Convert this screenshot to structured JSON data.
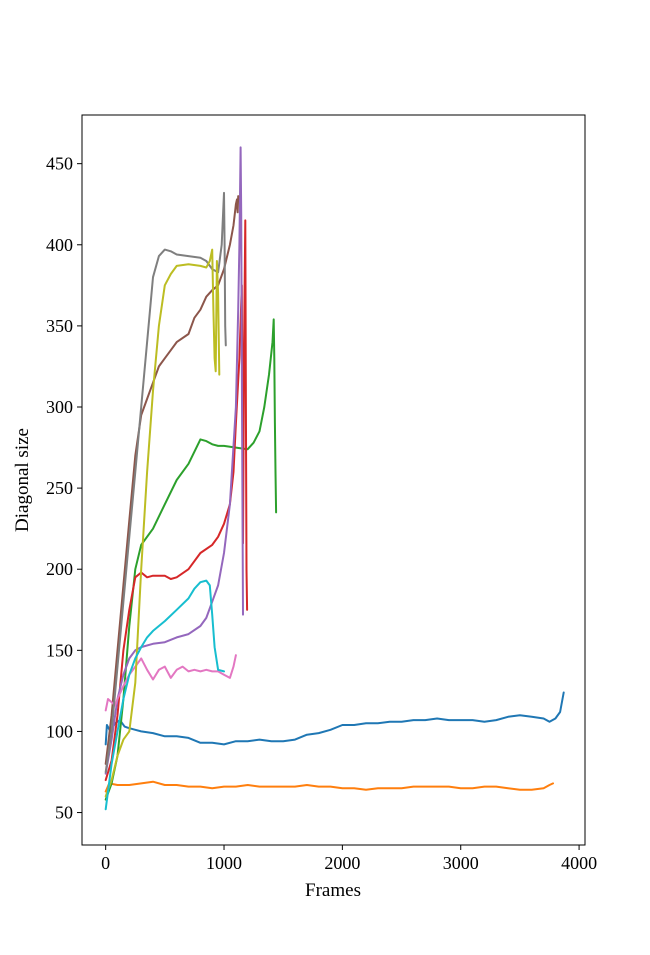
{
  "chart_data": {
    "type": "line",
    "title": "",
    "xlabel": "Frames",
    "ylabel": "Diagonal size",
    "xlim": [
      -200,
      4050
    ],
    "ylim": [
      30,
      480
    ],
    "xticks": [
      0,
      1000,
      2000,
      3000,
      4000
    ],
    "yticks": [
      50,
      100,
      150,
      200,
      250,
      300,
      350,
      400,
      450
    ],
    "grid": false,
    "legend": "none",
    "series": [
      {
        "color": "#1f77b4",
        "points": [
          [
            0,
            92
          ],
          [
            10,
            104
          ],
          [
            40,
            100
          ],
          [
            80,
            105
          ],
          [
            120,
            107
          ],
          [
            160,
            103
          ],
          [
            200,
            102
          ],
          [
            250,
            101
          ],
          [
            300,
            100
          ],
          [
            400,
            99
          ],
          [
            500,
            97
          ],
          [
            600,
            97
          ],
          [
            700,
            96
          ],
          [
            800,
            93
          ],
          [
            900,
            93
          ],
          [
            1000,
            92
          ],
          [
            1100,
            94
          ],
          [
            1200,
            94
          ],
          [
            1300,
            95
          ],
          [
            1400,
            94
          ],
          [
            1500,
            94
          ],
          [
            1600,
            95
          ],
          [
            1700,
            98
          ],
          [
            1800,
            99
          ],
          [
            1900,
            101
          ],
          [
            2000,
            104
          ],
          [
            2100,
            104
          ],
          [
            2200,
            105
          ],
          [
            2300,
            105
          ],
          [
            2400,
            106
          ],
          [
            2500,
            106
          ],
          [
            2600,
            107
          ],
          [
            2700,
            107
          ],
          [
            2800,
            108
          ],
          [
            2900,
            107
          ],
          [
            3000,
            107
          ],
          [
            3100,
            107
          ],
          [
            3200,
            106
          ],
          [
            3300,
            107
          ],
          [
            3400,
            109
          ],
          [
            3500,
            110
          ],
          [
            3600,
            109
          ],
          [
            3700,
            108
          ],
          [
            3750,
            106
          ],
          [
            3800,
            108
          ],
          [
            3840,
            112
          ],
          [
            3870,
            124
          ]
        ]
      },
      {
        "color": "#ff7f0e",
        "points": [
          [
            0,
            63
          ],
          [
            30,
            68
          ],
          [
            100,
            67
          ],
          [
            200,
            67
          ],
          [
            300,
            68
          ],
          [
            400,
            69
          ],
          [
            500,
            67
          ],
          [
            600,
            67
          ],
          [
            700,
            66
          ],
          [
            800,
            66
          ],
          [
            900,
            65
          ],
          [
            1000,
            66
          ],
          [
            1100,
            66
          ],
          [
            1200,
            67
          ],
          [
            1300,
            66
          ],
          [
            1400,
            66
          ],
          [
            1500,
            66
          ],
          [
            1600,
            66
          ],
          [
            1700,
            67
          ],
          [
            1800,
            66
          ],
          [
            1900,
            66
          ],
          [
            2000,
            65
          ],
          [
            2100,
            65
          ],
          [
            2200,
            64
          ],
          [
            2300,
            65
          ],
          [
            2400,
            65
          ],
          [
            2500,
            65
          ],
          [
            2600,
            66
          ],
          [
            2700,
            66
          ],
          [
            2800,
            66
          ],
          [
            2900,
            66
          ],
          [
            3000,
            65
          ],
          [
            3100,
            65
          ],
          [
            3200,
            66
          ],
          [
            3300,
            66
          ],
          [
            3400,
            65
          ],
          [
            3500,
            64
          ],
          [
            3600,
            64
          ],
          [
            3700,
            65
          ],
          [
            3750,
            67
          ],
          [
            3780,
            68
          ]
        ]
      },
      {
        "color": "#2ca02c",
        "points": [
          [
            0,
            58
          ],
          [
            50,
            68
          ],
          [
            100,
            85
          ],
          [
            150,
            120
          ],
          [
            200,
            165
          ],
          [
            250,
            200
          ],
          [
            300,
            215
          ],
          [
            400,
            225
          ],
          [
            500,
            240
          ],
          [
            600,
            255
          ],
          [
            700,
            265
          ],
          [
            800,
            280
          ],
          [
            850,
            279
          ],
          [
            900,
            277
          ],
          [
            950,
            276
          ],
          [
            1000,
            276
          ],
          [
            1100,
            275
          ],
          [
            1200,
            274
          ],
          [
            1250,
            278
          ],
          [
            1300,
            285
          ],
          [
            1340,
            300
          ],
          [
            1380,
            320
          ],
          [
            1410,
            340
          ],
          [
            1420,
            354
          ],
          [
            1425,
            330
          ],
          [
            1430,
            290
          ],
          [
            1435,
            260
          ],
          [
            1440,
            235
          ]
        ]
      },
      {
        "color": "#d62728",
        "points": [
          [
            0,
            70
          ],
          [
            50,
            82
          ],
          [
            100,
            110
          ],
          [
            150,
            150
          ],
          [
            200,
            175
          ],
          [
            250,
            195
          ],
          [
            300,
            198
          ],
          [
            350,
            195
          ],
          [
            400,
            196
          ],
          [
            500,
            196
          ],
          [
            550,
            194
          ],
          [
            600,
            195
          ],
          [
            700,
            200
          ],
          [
            800,
            210
          ],
          [
            900,
            215
          ],
          [
            950,
            220
          ],
          [
            1000,
            228
          ],
          [
            1050,
            240
          ],
          [
            1080,
            260
          ],
          [
            1100,
            290
          ],
          [
            1130,
            330
          ],
          [
            1150,
            375
          ],
          [
            1155,
            300
          ],
          [
            1160,
            216
          ],
          [
            1170,
            340
          ],
          [
            1180,
            415
          ],
          [
            1185,
            300
          ],
          [
            1190,
            200
          ],
          [
            1195,
            175
          ]
        ]
      },
      {
        "color": "#9467bd",
        "points": [
          [
            0,
            74
          ],
          [
            50,
            95
          ],
          [
            100,
            120
          ],
          [
            150,
            135
          ],
          [
            200,
            145
          ],
          [
            250,
            150
          ],
          [
            300,
            152
          ],
          [
            400,
            154
          ],
          [
            500,
            155
          ],
          [
            600,
            158
          ],
          [
            700,
            160
          ],
          [
            800,
            165
          ],
          [
            850,
            170
          ],
          [
            900,
            180
          ],
          [
            950,
            190
          ],
          [
            1000,
            210
          ],
          [
            1050,
            240
          ],
          [
            1100,
            300
          ],
          [
            1120,
            360
          ],
          [
            1130,
            400
          ],
          [
            1140,
            460
          ],
          [
            1145,
            420
          ],
          [
            1150,
            330
          ],
          [
            1155,
            250
          ],
          [
            1160,
            172
          ]
        ]
      },
      {
        "color": "#8c564b",
        "points": [
          [
            0,
            80
          ],
          [
            50,
            110
          ],
          [
            100,
            150
          ],
          [
            150,
            190
          ],
          [
            200,
            230
          ],
          [
            250,
            270
          ],
          [
            300,
            295
          ],
          [
            350,
            305
          ],
          [
            400,
            315
          ],
          [
            450,
            325
          ],
          [
            500,
            330
          ],
          [
            550,
            335
          ],
          [
            600,
            340
          ],
          [
            700,
            345
          ],
          [
            750,
            355
          ],
          [
            800,
            360
          ],
          [
            850,
            368
          ],
          [
            900,
            372
          ],
          [
            950,
            375
          ],
          [
            1000,
            385
          ],
          [
            1050,
            400
          ],
          [
            1080,
            412
          ],
          [
            1100,
            425
          ],
          [
            1110,
            428
          ],
          [
            1115,
            420
          ],
          [
            1120,
            430
          ]
        ]
      },
      {
        "color": "#e377c2",
        "points": [
          [
            0,
            113
          ],
          [
            20,
            120
          ],
          [
            50,
            118
          ],
          [
            80,
            116
          ],
          [
            100,
            120
          ],
          [
            150,
            128
          ],
          [
            200,
            135
          ],
          [
            250,
            140
          ],
          [
            300,
            145
          ],
          [
            350,
            138
          ],
          [
            400,
            132
          ],
          [
            450,
            138
          ],
          [
            500,
            140
          ],
          [
            550,
            133
          ],
          [
            600,
            138
          ],
          [
            650,
            140
          ],
          [
            700,
            137
          ],
          [
            750,
            138
          ],
          [
            800,
            137
          ],
          [
            850,
            138
          ],
          [
            900,
            137
          ],
          [
            950,
            137
          ],
          [
            1000,
            135
          ],
          [
            1050,
            133
          ],
          [
            1080,
            140
          ],
          [
            1100,
            147
          ]
        ]
      },
      {
        "color": "#7f7f7f",
        "points": [
          [
            0,
            75
          ],
          [
            50,
            100
          ],
          [
            100,
            140
          ],
          [
            150,
            180
          ],
          [
            200,
            220
          ],
          [
            250,
            260
          ],
          [
            300,
            300
          ],
          [
            350,
            340
          ],
          [
            400,
            380
          ],
          [
            450,
            393
          ],
          [
            500,
            397
          ],
          [
            550,
            396
          ],
          [
            600,
            394
          ],
          [
            700,
            393
          ],
          [
            800,
            392
          ],
          [
            850,
            390
          ],
          [
            900,
            385
          ],
          [
            950,
            383
          ],
          [
            980,
            400
          ],
          [
            1000,
            432
          ],
          [
            1005,
            400
          ],
          [
            1010,
            350
          ],
          [
            1015,
            338
          ]
        ]
      },
      {
        "color": "#bcbd22",
        "points": [
          [
            0,
            60
          ],
          [
            50,
            70
          ],
          [
            100,
            85
          ],
          [
            150,
            95
          ],
          [
            200,
            100
          ],
          [
            250,
            130
          ],
          [
            300,
            200
          ],
          [
            350,
            260
          ],
          [
            400,
            310
          ],
          [
            450,
            350
          ],
          [
            500,
            375
          ],
          [
            550,
            382
          ],
          [
            600,
            387
          ],
          [
            700,
            388
          ],
          [
            800,
            387
          ],
          [
            850,
            386
          ],
          [
            880,
            390
          ],
          [
            900,
            397
          ],
          [
            910,
            360
          ],
          [
            920,
            330
          ],
          [
            930,
            322
          ],
          [
            940,
            390
          ],
          [
            950,
            370
          ],
          [
            960,
            320
          ]
        ]
      },
      {
        "color": "#17becf",
        "points": [
          [
            0,
            52
          ],
          [
            50,
            80
          ],
          [
            100,
            100
          ],
          [
            150,
            120
          ],
          [
            200,
            135
          ],
          [
            250,
            145
          ],
          [
            300,
            152
          ],
          [
            350,
            158
          ],
          [
            400,
            162
          ],
          [
            500,
            168
          ],
          [
            600,
            175
          ],
          [
            700,
            182
          ],
          [
            750,
            188
          ],
          [
            800,
            192
          ],
          [
            850,
            193
          ],
          [
            880,
            190
          ],
          [
            900,
            172
          ],
          [
            920,
            152
          ],
          [
            950,
            138
          ],
          [
            1000,
            137
          ]
        ]
      }
    ]
  }
}
